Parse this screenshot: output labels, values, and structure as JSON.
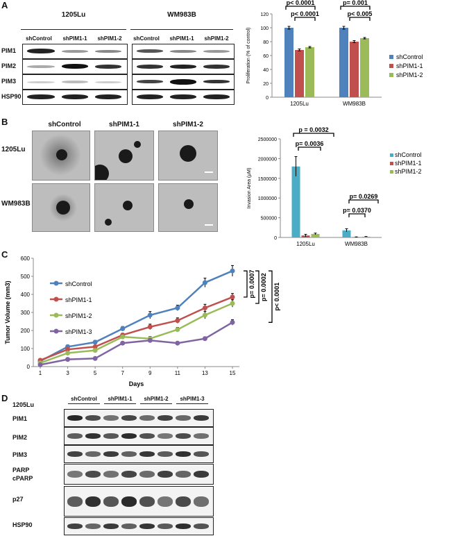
{
  "panels": {
    "a": "A",
    "b": "B",
    "c": "C",
    "d": "D"
  },
  "panel_a": {
    "cell_lines": [
      "1205Lu",
      "WM983B"
    ],
    "lanes_1205": [
      "shControl",
      "shPIM1-1",
      "shPIM1-2"
    ],
    "lanes_wm": [
      "shControl",
      "shPIM1-1",
      "shPIM1-2"
    ],
    "rows": [
      "PIM1",
      "PIM2",
      "PIM3",
      "HSP90"
    ]
  },
  "panel_b": {
    "cols": [
      "shControl",
      "shPIM1-1",
      "shPIM1-2"
    ],
    "rows": [
      "1205Lu",
      "WM983B"
    ]
  },
  "panel_d": {
    "cell_line": "1205Lu",
    "groups": [
      "shControl",
      "shPIM1-1",
      "shPIM1-2",
      "shPIM1-3"
    ],
    "rows": [
      "PIM1",
      "PIM2",
      "PIM3",
      "PARP",
      "cPARP",
      "p27",
      "HSP90"
    ]
  },
  "colors": {
    "blue": "#4F81BD",
    "red": "#C0504D",
    "green": "#9BBB59",
    "purple": "#8064A2",
    "lightblue": "#4BACC6"
  },
  "chart_data": [
    {
      "type": "bar",
      "categories": [
        "1205Lu",
        "WM983B"
      ],
      "series": [
        {
          "name": "shControl",
          "values": [
            100,
            100
          ],
          "errors": [
            2,
            2
          ]
        },
        {
          "name": "shPIM1-1",
          "values": [
            68,
            80
          ],
          "errors": [
            1.5,
            1.5
          ]
        },
        {
          "name": "shPIM1-2",
          "values": [
            72,
            85
          ],
          "errors": [
            1,
            1
          ]
        }
      ],
      "ylabel": "Proliferation (% of control)",
      "ylim": [
        0,
        120
      ],
      "yticks": [
        0,
        20,
        40,
        60,
        80,
        100,
        120
      ],
      "legend": "right",
      "annotations": [
        "p< 0.0001",
        "p< 0.0001",
        "p= 0.001",
        "p< 0.005"
      ]
    },
    {
      "type": "bar",
      "categories": [
        "1205Lu",
        "WM983B"
      ],
      "series": [
        {
          "name": "shControl",
          "values": [
            1800000,
            180000
          ],
          "errors": [
            250000,
            40000
          ]
        },
        {
          "name": "shPIM1-1",
          "values": [
            50000,
            10000
          ],
          "errors": [
            30000,
            5000
          ]
        },
        {
          "name": "shPIM1-2",
          "values": [
            90000,
            20000
          ],
          "errors": [
            20000,
            5000
          ]
        }
      ],
      "ylabel": "Invasion Area (μM)",
      "ylim": [
        0,
        2500000
      ],
      "yticks": [
        0,
        500000,
        1000000,
        1500000,
        2000000,
        2500000
      ],
      "legend": "right",
      "annotations": [
        "p = 0.0032",
        "p= 0.0036",
        "p= 0.0269",
        "p= 0.0370"
      ]
    },
    {
      "type": "line",
      "x": [
        1,
        3,
        5,
        7,
        9,
        11,
        13,
        15
      ],
      "series": [
        {
          "name": "shControl",
          "values": [
            30,
            110,
            135,
            210,
            285,
            325,
            465,
            530
          ],
          "errors": [
            5,
            10,
            10,
            12,
            20,
            15,
            25,
            30
          ]
        },
        {
          "name": "shPIM1-1",
          "values": [
            35,
            95,
            110,
            175,
            220,
            255,
            325,
            385
          ],
          "errors": [
            5,
            8,
            8,
            10,
            15,
            15,
            20,
            20
          ]
        },
        {
          "name": "shPIM1-2",
          "values": [
            20,
            75,
            90,
            165,
            155,
            205,
            285,
            350
          ],
          "errors": [
            5,
            8,
            8,
            10,
            12,
            12,
            20,
            20
          ]
        },
        {
          "name": "shPIM1-3",
          "values": [
            10,
            40,
            45,
            130,
            145,
            130,
            155,
            245
          ],
          "errors": [
            3,
            5,
            5,
            8,
            10,
            8,
            10,
            15
          ]
        }
      ],
      "xlabel": "Days",
      "ylabel": "Tumor Volume (mm3)",
      "ylim": [
        0,
        600
      ],
      "yticks": [
        0,
        100,
        200,
        300,
        400,
        500,
        600
      ],
      "legend": "top-left",
      "annotations": [
        "p= 0.0007",
        "p= 0.0002",
        "p< 0.0001"
      ]
    }
  ]
}
